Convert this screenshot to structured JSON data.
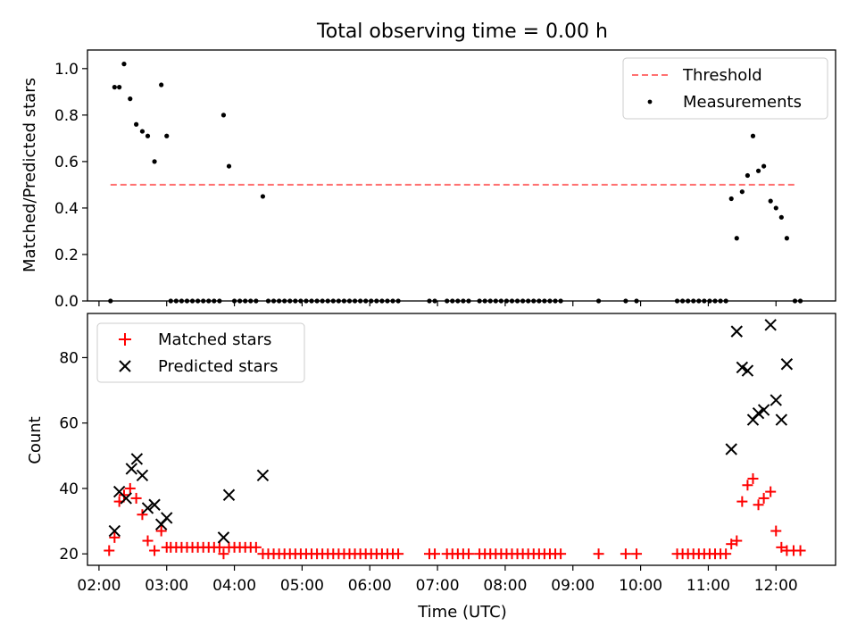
{
  "chart_data": [
    {
      "type": "scatter",
      "title": "Total observing time = 0.00 h",
      "xlabel": "",
      "ylabel": "Matched/Predicted stars",
      "xlim_hours": [
        1.83,
        12.88
      ],
      "ylim": [
        0,
        1.08
      ],
      "yticks": [
        0.0,
        0.2,
        0.4,
        0.6,
        0.8,
        1.0
      ],
      "ytick_labels": [
        "0.0",
        "0.2",
        "0.4",
        "0.6",
        "0.8",
        "1.0"
      ],
      "legend_position": "top-right",
      "threshold": {
        "name": "Threshold",
        "value": 0.5,
        "x_range_hours": [
          2.17,
          12.3
        ],
        "color": "#ff7070"
      },
      "measurements": {
        "name": "Measurements",
        "color": "#000000",
        "points": [
          [
            2.17,
            0.0
          ],
          [
            2.23,
            0.92
          ],
          [
            2.3,
            0.92
          ],
          [
            2.37,
            1.02
          ],
          [
            2.46,
            0.87
          ],
          [
            2.55,
            0.76
          ],
          [
            2.64,
            0.73
          ],
          [
            2.72,
            0.71
          ],
          [
            2.82,
            0.6
          ],
          [
            2.92,
            0.93
          ],
          [
            3.0,
            0.71
          ],
          [
            3.06,
            0.0
          ],
          [
            3.14,
            0.0
          ],
          [
            3.22,
            0.0
          ],
          [
            3.3,
            0.0
          ],
          [
            3.38,
            0.0
          ],
          [
            3.46,
            0.0
          ],
          [
            3.54,
            0.0
          ],
          [
            3.62,
            0.0
          ],
          [
            3.7,
            0.0
          ],
          [
            3.78,
            0.0
          ],
          [
            3.84,
            0.8
          ],
          [
            3.92,
            0.58
          ],
          [
            4.0,
            0.0
          ],
          [
            4.08,
            0.0
          ],
          [
            4.16,
            0.0
          ],
          [
            4.24,
            0.0
          ],
          [
            4.32,
            0.0
          ],
          [
            4.42,
            0.45
          ],
          [
            4.5,
            0.0
          ],
          [
            4.58,
            0.0
          ],
          [
            4.66,
            0.0
          ],
          [
            4.74,
            0.0
          ],
          [
            4.82,
            0.0
          ],
          [
            4.9,
            0.0
          ],
          [
            4.98,
            0.0
          ],
          [
            5.06,
            0.0
          ],
          [
            5.14,
            0.0
          ],
          [
            5.22,
            0.0
          ],
          [
            5.3,
            0.0
          ],
          [
            5.38,
            0.0
          ],
          [
            5.46,
            0.0
          ],
          [
            5.54,
            0.0
          ],
          [
            5.62,
            0.0
          ],
          [
            5.7,
            0.0
          ],
          [
            5.78,
            0.0
          ],
          [
            5.86,
            0.0
          ],
          [
            5.94,
            0.0
          ],
          [
            6.02,
            0.0
          ],
          [
            6.1,
            0.0
          ],
          [
            6.18,
            0.0
          ],
          [
            6.26,
            0.0
          ],
          [
            6.34,
            0.0
          ],
          [
            6.42,
            0.0
          ],
          [
            6.88,
            0.0
          ],
          [
            6.96,
            0.0
          ],
          [
            7.14,
            0.0
          ],
          [
            7.22,
            0.0
          ],
          [
            7.3,
            0.0
          ],
          [
            7.38,
            0.0
          ],
          [
            7.46,
            0.0
          ],
          [
            7.62,
            0.0
          ],
          [
            7.7,
            0.0
          ],
          [
            7.78,
            0.0
          ],
          [
            7.86,
            0.0
          ],
          [
            7.94,
            0.0
          ],
          [
            8.02,
            0.0
          ],
          [
            8.1,
            0.0
          ],
          [
            8.18,
            0.0
          ],
          [
            8.26,
            0.0
          ],
          [
            8.34,
            0.0
          ],
          [
            8.42,
            0.0
          ],
          [
            8.5,
            0.0
          ],
          [
            8.58,
            0.0
          ],
          [
            8.66,
            0.0
          ],
          [
            8.74,
            0.0
          ],
          [
            8.82,
            0.0
          ],
          [
            9.38,
            0.0
          ],
          [
            9.78,
            0.0
          ],
          [
            9.94,
            0.0
          ],
          [
            10.54,
            0.0
          ],
          [
            10.62,
            0.0
          ],
          [
            10.7,
            0.0
          ],
          [
            10.78,
            0.0
          ],
          [
            10.86,
            0.0
          ],
          [
            10.94,
            0.0
          ],
          [
            11.02,
            0.0
          ],
          [
            11.1,
            0.0
          ],
          [
            11.18,
            0.0
          ],
          [
            11.26,
            0.0
          ],
          [
            11.34,
            0.44
          ],
          [
            11.42,
            0.27
          ],
          [
            11.5,
            0.47
          ],
          [
            11.58,
            0.54
          ],
          [
            11.66,
            0.71
          ],
          [
            11.74,
            0.56
          ],
          [
            11.82,
            0.58
          ],
          [
            11.92,
            0.43
          ],
          [
            12.0,
            0.4
          ],
          [
            12.08,
            0.36
          ],
          [
            12.16,
            0.27
          ],
          [
            12.28,
            0.0
          ],
          [
            12.36,
            0.0
          ]
        ]
      }
    },
    {
      "type": "scatter",
      "title": "",
      "xlabel": "Time (UTC)",
      "ylabel": "Count",
      "xlim_hours": [
        1.83,
        12.88
      ],
      "ylim": [
        16.5,
        93.5
      ],
      "yticks": [
        20,
        40,
        60,
        80
      ],
      "ytick_labels": [
        "20",
        "40",
        "60",
        "80"
      ],
      "xticks_hours": [
        2,
        3,
        4,
        5,
        6,
        7,
        8,
        9,
        10,
        11,
        12
      ],
      "xtick_labels": [
        "02:00",
        "03:00",
        "04:00",
        "05:00",
        "06:00",
        "07:00",
        "08:00",
        "09:00",
        "10:00",
        "11:00",
        "12:00"
      ],
      "legend_position": "top-left",
      "series": [
        {
          "name": "Matched stars",
          "marker": "plus",
          "color": "#ff0000",
          "points": [
            [
              2.15,
              21
            ],
            [
              2.23,
              25
            ],
            [
              2.3,
              36
            ],
            [
              2.37,
              38
            ],
            [
              2.46,
              40
            ],
            [
              2.55,
              37
            ],
            [
              2.64,
              32
            ],
            [
              2.72,
              24
            ],
            [
              2.82,
              21
            ],
            [
              2.92,
              27
            ],
            [
              3.0,
              22
            ],
            [
              3.06,
              22
            ],
            [
              3.14,
              22
            ],
            [
              3.22,
              22
            ],
            [
              3.3,
              22
            ],
            [
              3.38,
              22
            ],
            [
              3.46,
              22
            ],
            [
              3.54,
              22
            ],
            [
              3.62,
              22
            ],
            [
              3.7,
              22
            ],
            [
              3.78,
              22
            ],
            [
              3.84,
              20
            ],
            [
              3.92,
              22
            ],
            [
              4.0,
              22
            ],
            [
              4.08,
              22
            ],
            [
              4.16,
              22
            ],
            [
              4.24,
              22
            ],
            [
              4.32,
              22
            ],
            [
              4.42,
              20
            ],
            [
              4.5,
              20
            ],
            [
              4.58,
              20
            ],
            [
              4.66,
              20
            ],
            [
              4.74,
              20
            ],
            [
              4.82,
              20
            ],
            [
              4.9,
              20
            ],
            [
              4.98,
              20
            ],
            [
              5.06,
              20
            ],
            [
              5.14,
              20
            ],
            [
              5.22,
              20
            ],
            [
              5.3,
              20
            ],
            [
              5.38,
              20
            ],
            [
              5.46,
              20
            ],
            [
              5.54,
              20
            ],
            [
              5.62,
              20
            ],
            [
              5.7,
              20
            ],
            [
              5.78,
              20
            ],
            [
              5.86,
              20
            ],
            [
              5.94,
              20
            ],
            [
              6.02,
              20
            ],
            [
              6.1,
              20
            ],
            [
              6.18,
              20
            ],
            [
              6.26,
              20
            ],
            [
              6.34,
              20
            ],
            [
              6.42,
              20
            ],
            [
              6.88,
              20
            ],
            [
              6.96,
              20
            ],
            [
              7.14,
              20
            ],
            [
              7.22,
              20
            ],
            [
              7.3,
              20
            ],
            [
              7.38,
              20
            ],
            [
              7.46,
              20
            ],
            [
              7.62,
              20
            ],
            [
              7.7,
              20
            ],
            [
              7.78,
              20
            ],
            [
              7.86,
              20
            ],
            [
              7.94,
              20
            ],
            [
              8.02,
              20
            ],
            [
              8.1,
              20
            ],
            [
              8.18,
              20
            ],
            [
              8.26,
              20
            ],
            [
              8.34,
              20
            ],
            [
              8.42,
              20
            ],
            [
              8.5,
              20
            ],
            [
              8.58,
              20
            ],
            [
              8.66,
              20
            ],
            [
              8.74,
              20
            ],
            [
              8.82,
              20
            ],
            [
              9.38,
              20
            ],
            [
              9.78,
              20
            ],
            [
              9.94,
              20
            ],
            [
              10.54,
              20
            ],
            [
              10.62,
              20
            ],
            [
              10.7,
              20
            ],
            [
              10.78,
              20
            ],
            [
              10.86,
              20
            ],
            [
              10.94,
              20
            ],
            [
              11.02,
              20
            ],
            [
              11.1,
              20
            ],
            [
              11.18,
              20
            ],
            [
              11.26,
              20
            ],
            [
              11.34,
              23
            ],
            [
              11.42,
              24
            ],
            [
              11.5,
              36
            ],
            [
              11.58,
              41
            ],
            [
              11.66,
              43
            ],
            [
              11.74,
              35
            ],
            [
              11.82,
              37
            ],
            [
              11.92,
              39
            ],
            [
              12.0,
              27
            ],
            [
              12.08,
              22
            ],
            [
              12.16,
              21
            ],
            [
              12.26,
              21
            ],
            [
              12.36,
              21
            ]
          ]
        },
        {
          "name": "Predicted stars",
          "marker": "x",
          "color": "#000000",
          "points": [
            [
              2.23,
              27
            ],
            [
              2.3,
              39
            ],
            [
              2.4,
              37
            ],
            [
              2.48,
              46
            ],
            [
              2.56,
              49
            ],
            [
              2.64,
              44
            ],
            [
              2.72,
              34
            ],
            [
              2.82,
              35
            ],
            [
              2.92,
              29
            ],
            [
              3.0,
              31
            ],
            [
              3.84,
              25
            ],
            [
              3.92,
              38
            ],
            [
              4.42,
              44
            ],
            [
              11.34,
              52
            ],
            [
              11.42,
              88
            ],
            [
              11.5,
              77
            ],
            [
              11.58,
              76
            ],
            [
              11.66,
              61
            ],
            [
              11.74,
              63
            ],
            [
              11.82,
              64
            ],
            [
              11.92,
              90
            ],
            [
              12.0,
              67
            ],
            [
              12.08,
              61
            ],
            [
              12.16,
              78
            ]
          ]
        }
      ]
    }
  ]
}
